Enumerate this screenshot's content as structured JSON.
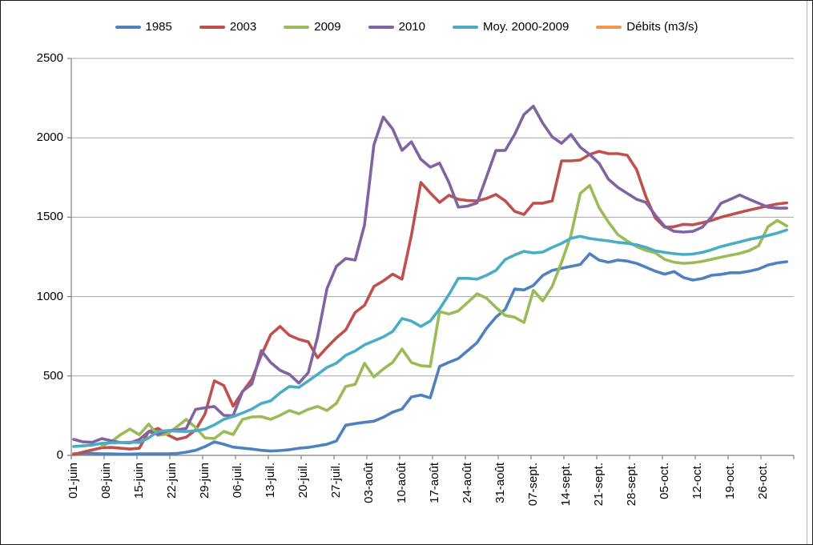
{
  "chart_data": {
    "type": "line",
    "title": "",
    "xlabel": "",
    "ylabel": "",
    "legend_position": "top",
    "grid": "horizontal-only",
    "background_color": "#FFFFFF",
    "gridline_color": "#A6A6A6",
    "axis_color": "#808080",
    "text_color": "#000000",
    "ylim": [
      0,
      2500
    ],
    "y_ticks": [
      0,
      500,
      1000,
      1500,
      2000,
      2500
    ],
    "x_tick_labels": [
      "01-juin",
      "08-juin",
      "15-juin",
      "22-juin",
      "29-juin",
      "06-juil.",
      "13-juil.",
      "20-juil.",
      "27-juil.",
      "03-août",
      "10-août",
      "17-août",
      "24-août",
      "31-août",
      "07-sept.",
      "14-sept.",
      "21-sept.",
      "28-sept.",
      "05-oct.",
      "12-oct.",
      "19-oct.",
      "26-oct."
    ],
    "x_total_days": 154,
    "x_days_per_tick": 7,
    "sample_start_day": 1,
    "sample_step_days": 2,
    "series": [
      {
        "name": "1985",
        "color": "#4F81BD",
        "values": [
          10,
          12,
          12,
          10,
          10,
          8,
          8,
          10,
          10,
          10,
          10,
          12,
          20,
          32,
          55,
          85,
          70,
          52,
          46,
          40,
          32,
          27,
          30,
          36,
          45,
          50,
          60,
          70,
          90,
          190,
          200,
          208,
          215,
          240,
          272,
          292,
          368,
          380,
          362,
          560,
          586,
          610,
          660,
          710,
          800,
          870,
          920,
          1048,
          1042,
          1070,
          1133,
          1165,
          1178,
          1190,
          1202,
          1270,
          1230,
          1216,
          1230,
          1224,
          1209,
          1185,
          1160,
          1141,
          1158,
          1120,
          1104,
          1114,
          1134,
          1140,
          1150,
          1150,
          1160,
          1174,
          1199,
          1212,
          1220
        ]
      },
      {
        "name": "2003",
        "color": "#C0504D",
        "values": [
          5,
          20,
          35,
          48,
          50,
          45,
          40,
          45,
          150,
          170,
          130,
          101,
          115,
          160,
          260,
          470,
          440,
          310,
          400,
          480,
          630,
          760,
          812,
          756,
          731,
          715,
          615,
          680,
          740,
          790,
          900,
          945,
          1064,
          1099,
          1141,
          1110,
          1386,
          1719,
          1653,
          1593,
          1638,
          1613,
          1605,
          1603,
          1618,
          1643,
          1603,
          1537,
          1517,
          1588,
          1588,
          1603,
          1855,
          1855,
          1860,
          1895,
          1915,
          1900,
          1900,
          1890,
          1800,
          1628,
          1494,
          1437,
          1440,
          1455,
          1452,
          1465,
          1480,
          1500,
          1515,
          1530,
          1545,
          1558,
          1572,
          1583,
          1590
        ]
      },
      {
        "name": "2009",
        "color": "#9BBB59",
        "values": [
          null,
          null,
          null,
          60,
          85,
          130,
          166,
          130,
          197,
          126,
          135,
          180,
          227,
          176,
          110,
          106,
          151,
          131,
          227,
          242,
          244,
          227,
          252,
          283,
          262,
          290,
          308,
          283,
          327,
          434,
          447,
          580,
          494,
          544,
          585,
          670,
          585,
          565,
          560,
          905,
          890,
          910,
          963,
          1018,
          990,
          932,
          881,
          870,
          837,
          1040,
          973,
          1065,
          1216,
          1386,
          1650,
          1700,
          1560,
          1470,
          1390,
          1350,
          1315,
          1291,
          1275,
          1234,
          1216,
          1209,
          1213,
          1222,
          1235,
          1248,
          1260,
          1272,
          1290,
          1320,
          1440,
          1480,
          1445
        ]
      },
      {
        "name": "2010",
        "color": "#8064A2",
        "values": [
          101,
          85,
          82,
          106,
          92,
          81,
          78,
          100,
          150,
          131,
          155,
          160,
          170,
          290,
          300,
          308,
          252,
          250,
          403,
          450,
          660,
          585,
          536,
          510,
          455,
          520,
          746,
          1050,
          1190,
          1240,
          1230,
          1452,
          1955,
          2131,
          2056,
          1921,
          1975,
          1865,
          1815,
          1840,
          1719,
          1563,
          1570,
          1590,
          1754,
          1920,
          1921,
          2021,
          2147,
          2199,
          2092,
          2006,
          1965,
          2021,
          1940,
          1895,
          1840,
          1739,
          1688,
          1650,
          1613,
          1593,
          1512,
          1442,
          1411,
          1406,
          1411,
          1437,
          1502,
          1588,
          1613,
          1640,
          1613,
          1588,
          1563,
          1557,
          1557
        ]
      },
      {
        "name": "Moy. 2000-2009",
        "color": "#4BACC6",
        "values": [
          56,
          60,
          65,
          76,
          79,
          81,
          83,
          81,
          110,
          151,
          156,
          152,
          150,
          155,
          165,
          192,
          227,
          245,
          267,
          292,
          327,
          343,
          393,
          434,
          428,
          469,
          510,
          554,
          580,
          630,
          658,
          696,
          721,
          746,
          780,
          862,
          846,
          812,
          846,
          922,
          1013,
          1115,
          1115,
          1110,
          1134,
          1165,
          1234,
          1262,
          1285,
          1275,
          1280,
          1310,
          1335,
          1367,
          1380,
          1366,
          1358,
          1351,
          1341,
          1335,
          1326,
          1310,
          1288,
          1278,
          1270,
          1265,
          1268,
          1278,
          1295,
          1315,
          1330,
          1345,
          1360,
          1372,
          1385,
          1400,
          1420
        ]
      },
      {
        "name": "Débits (m3/s)",
        "color": "#F79646",
        "values": []
      }
    ]
  }
}
